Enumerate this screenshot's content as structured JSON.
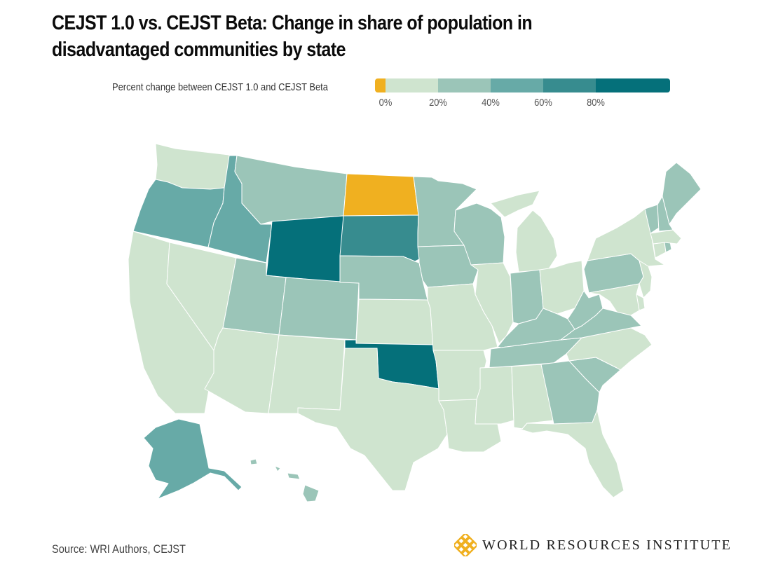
{
  "title": "CEJST 1.0 vs. CEJST Beta: Change in share of population in disadvantaged communities by state",
  "legend": {
    "label": "Percent change between CEJST 1.0 and CEJST Beta",
    "bins": [
      {
        "id": "neg",
        "range": "< 0%",
        "color": "#f0b020"
      },
      {
        "id": "b0",
        "range": "0–20%",
        "color": "#cfe4cf"
      },
      {
        "id": "b1",
        "range": "20–40%",
        "color": "#9bc5b8"
      },
      {
        "id": "b2",
        "range": "40–60%",
        "color": "#67aaa7"
      },
      {
        "id": "b3",
        "range": "60–80%",
        "color": "#378c8f"
      },
      {
        "id": "b4",
        "range": "80%+",
        "color": "#05707a"
      }
    ],
    "ticks": [
      "0%",
      "20%",
      "40%",
      "60%",
      "80%"
    ]
  },
  "chart_data": {
    "type": "choropleth",
    "title": "CEJST 1.0 vs. CEJST Beta: Change in share of population in disadvantaged communities by state",
    "legend_title": "Percent change between CEJST 1.0 and CEJST Beta",
    "legend_placement": "top",
    "bin_edges_percent": [
      0,
      20,
      40,
      60,
      80
    ],
    "states": {
      "WA": "0–20%",
      "OR": "40–60%",
      "CA": "0–20%",
      "NV": "0–20%",
      "ID": "40–60%",
      "MT": "20–40%",
      "WY": "80%+",
      "UT": "20–40%",
      "CO": "20–40%",
      "AZ": "0–20%",
      "NM": "0–20%",
      "ND": "< 0%",
      "SD": "60–80%",
      "NE": "20–40%",
      "KS": "0–20%",
      "OK": "80%+",
      "TX": "0–20%",
      "MN": "20–40%",
      "IA": "20–40%",
      "MO": "0–20%",
      "AR": "0–20%",
      "LA": "0–20%",
      "WI": "20–40%",
      "IL": "0–20%",
      "MI": "0–20%",
      "IN": "20–40%",
      "OH": "0–20%",
      "KY": "20–40%",
      "TN": "20–40%",
      "MS": "0–20%",
      "AL": "0–20%",
      "GA": "20–40%",
      "FL": "0–20%",
      "SC": "20–40%",
      "NC": "0–20%",
      "VA": "20–40%",
      "WV": "20–40%",
      "PA": "20–40%",
      "NY": "0–20%",
      "NJ": "0–20%",
      "DE": "0–20%",
      "MD": "0–20%",
      "CT": "0–20%",
      "RI": "20–40%",
      "MA": "0–20%",
      "VT": "20–40%",
      "NH": "20–40%",
      "ME": "20–40%",
      "AK": "40–60%",
      "HI": "20–40%"
    }
  },
  "footer": {
    "source": "Source: WRI Authors, CEJST",
    "logo_text": "WORLD RESOURCES INSTITUTE",
    "logo_color": "#f0b020"
  }
}
